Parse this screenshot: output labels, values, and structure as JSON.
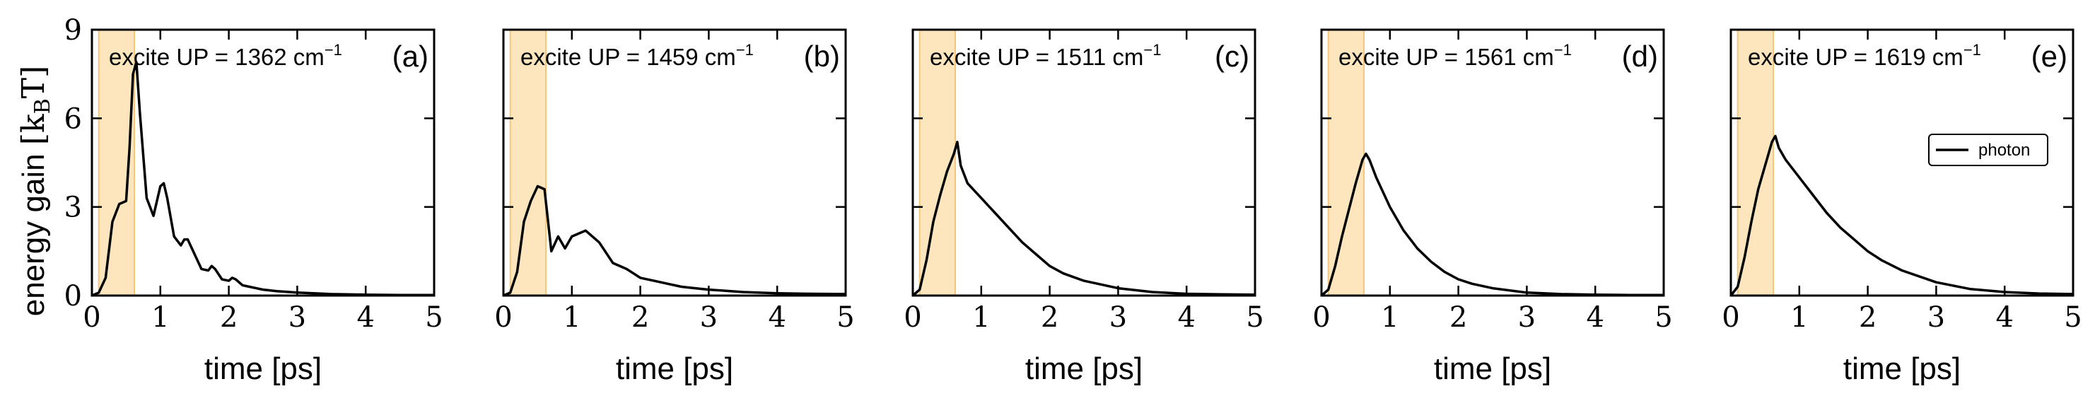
{
  "figure": {
    "ylabel_main": "energy gain ",
    "ylabel_unit": "[k",
    "ylabel_sub": "B",
    "ylabel_tail": "T]"
  },
  "chart_data": [
    {
      "type": "line",
      "panel_label": "(a)",
      "annotation": "excite UP = 1362 cm",
      "annotation_sup": "−1",
      "xlabel": "time [ps]",
      "ylabel": "energy gain [kBT]",
      "xlim": [
        0,
        5
      ],
      "ylim": [
        0,
        9
      ],
      "xticks": [
        0,
        1,
        2,
        3,
        4,
        5
      ],
      "yticks": [
        0,
        3,
        6,
        9
      ],
      "excitation_window": [
        0.1,
        0.62
      ],
      "excitation_color": "#fde6bd",
      "series": [
        {
          "color": "#000000",
          "x": [
            0,
            0.1,
            0.2,
            0.3,
            0.4,
            0.5,
            0.55,
            0.6,
            0.65,
            0.7,
            0.8,
            0.9,
            1.0,
            1.05,
            1.1,
            1.2,
            1.3,
            1.35,
            1.4,
            1.5,
            1.6,
            1.7,
            1.75,
            1.8,
            1.9,
            2.0,
            2.05,
            2.1,
            2.2,
            2.3,
            2.4,
            2.5,
            2.7,
            3.0,
            3.5,
            4.0,
            4.5,
            5.0
          ],
          "y": [
            0,
            0.1,
            0.6,
            2.5,
            3.1,
            3.2,
            5.0,
            7.5,
            7.9,
            6.2,
            3.3,
            2.7,
            3.7,
            3.8,
            3.3,
            2.0,
            1.7,
            1.9,
            1.9,
            1.4,
            0.9,
            0.85,
            1.0,
            0.9,
            0.55,
            0.5,
            0.6,
            0.55,
            0.35,
            0.3,
            0.25,
            0.2,
            0.15,
            0.1,
            0.05,
            0.03,
            0.02,
            0.02
          ]
        }
      ]
    },
    {
      "type": "line",
      "panel_label": "(b)",
      "annotation": "excite UP = 1459 cm",
      "annotation_sup": "−1",
      "xlabel": "time [ps]",
      "xlim": [
        0,
        5
      ],
      "ylim": [
        0,
        9
      ],
      "xticks": [
        0,
        1,
        2,
        3,
        4,
        5
      ],
      "yticks": [
        0,
        3,
        6,
        9
      ],
      "excitation_window": [
        0.1,
        0.62
      ],
      "excitation_color": "#fde6bd",
      "series": [
        {
          "color": "#000000",
          "x": [
            0,
            0.1,
            0.2,
            0.3,
            0.4,
            0.5,
            0.6,
            0.7,
            0.8,
            0.9,
            1.0,
            1.2,
            1.4,
            1.6,
            1.8,
            2.0,
            2.2,
            2.4,
            2.6,
            2.8,
            3.0,
            3.5,
            4.0,
            4.5,
            5.0
          ],
          "y": [
            0,
            0.1,
            0.8,
            2.5,
            3.2,
            3.7,
            3.6,
            1.5,
            2.0,
            1.6,
            2.0,
            2.2,
            1.8,
            1.1,
            0.9,
            0.6,
            0.5,
            0.4,
            0.3,
            0.25,
            0.2,
            0.12,
            0.08,
            0.06,
            0.05
          ]
        }
      ]
    },
    {
      "type": "line",
      "panel_label": "(c)",
      "annotation": "excite UP = 1511 cm",
      "annotation_sup": "−1",
      "xlabel": "time [ps]",
      "xlim": [
        0,
        5
      ],
      "ylim": [
        0,
        9
      ],
      "xticks": [
        0,
        1,
        2,
        3,
        4,
        5
      ],
      "yticks": [
        0,
        3,
        6,
        9
      ],
      "excitation_window": [
        0.1,
        0.62
      ],
      "excitation_color": "#fde6bd",
      "series": [
        {
          "color": "#000000",
          "x": [
            0,
            0.1,
            0.2,
            0.3,
            0.4,
            0.5,
            0.6,
            0.65,
            0.7,
            0.8,
            1.0,
            1.2,
            1.4,
            1.6,
            1.8,
            2.0,
            2.2,
            2.5,
            3.0,
            3.5,
            4.0,
            4.5,
            5.0
          ],
          "y": [
            0,
            0.2,
            1.2,
            2.5,
            3.4,
            4.2,
            4.8,
            5.2,
            4.4,
            3.8,
            3.3,
            2.8,
            2.3,
            1.8,
            1.4,
            1.0,
            0.75,
            0.5,
            0.25,
            0.12,
            0.06,
            0.04,
            0.03
          ]
        }
      ]
    },
    {
      "type": "line",
      "panel_label": "(d)",
      "annotation": "excite UP = 1561 cm",
      "annotation_sup": "−1",
      "xlabel": "time [ps]",
      "xlim": [
        0,
        5
      ],
      "ylim": [
        0,
        9
      ],
      "xticks": [
        0,
        1,
        2,
        3,
        4,
        5
      ],
      "yticks": [
        0,
        3,
        6,
        9
      ],
      "excitation_window": [
        0.1,
        0.62
      ],
      "excitation_color": "#fde6bd",
      "series": [
        {
          "color": "#000000",
          "x": [
            0,
            0.1,
            0.2,
            0.3,
            0.4,
            0.5,
            0.6,
            0.65,
            0.7,
            0.8,
            1.0,
            1.2,
            1.4,
            1.6,
            1.8,
            2.0,
            2.2,
            2.5,
            3.0,
            3.5,
            4.0,
            4.5,
            5.0
          ],
          "y": [
            0,
            0.2,
            1.0,
            2.0,
            2.9,
            3.8,
            4.6,
            4.8,
            4.6,
            4.0,
            3.0,
            2.2,
            1.6,
            1.15,
            0.8,
            0.55,
            0.4,
            0.25,
            0.1,
            0.05,
            0.03,
            0.02,
            0.02
          ]
        }
      ]
    },
    {
      "type": "line",
      "panel_label": "(e)",
      "annotation": "excite UP = 1619 cm",
      "annotation_sup": "−1",
      "xlabel": "time [ps]",
      "xlim": [
        0,
        5
      ],
      "ylim": [
        0,
        9
      ],
      "xticks": [
        0,
        1,
        2,
        3,
        4,
        5
      ],
      "yticks": [
        0,
        3,
        6,
        9
      ],
      "excitation_window": [
        0.1,
        0.62
      ],
      "excitation_color": "#fde6bd",
      "legend": {
        "position": "right",
        "entries": [
          "photon"
        ]
      },
      "series": [
        {
          "name": "photon",
          "color": "#000000",
          "x": [
            0,
            0.1,
            0.2,
            0.3,
            0.4,
            0.5,
            0.6,
            0.65,
            0.7,
            0.8,
            1.0,
            1.2,
            1.4,
            1.6,
            1.8,
            2.0,
            2.2,
            2.5,
            3.0,
            3.5,
            4.0,
            4.5,
            5.0
          ],
          "y": [
            0,
            0.3,
            1.3,
            2.5,
            3.6,
            4.4,
            5.2,
            5.4,
            5.0,
            4.6,
            4.0,
            3.4,
            2.8,
            2.3,
            1.9,
            1.5,
            1.2,
            0.85,
            0.45,
            0.22,
            0.12,
            0.07,
            0.05
          ]
        }
      ]
    }
  ]
}
